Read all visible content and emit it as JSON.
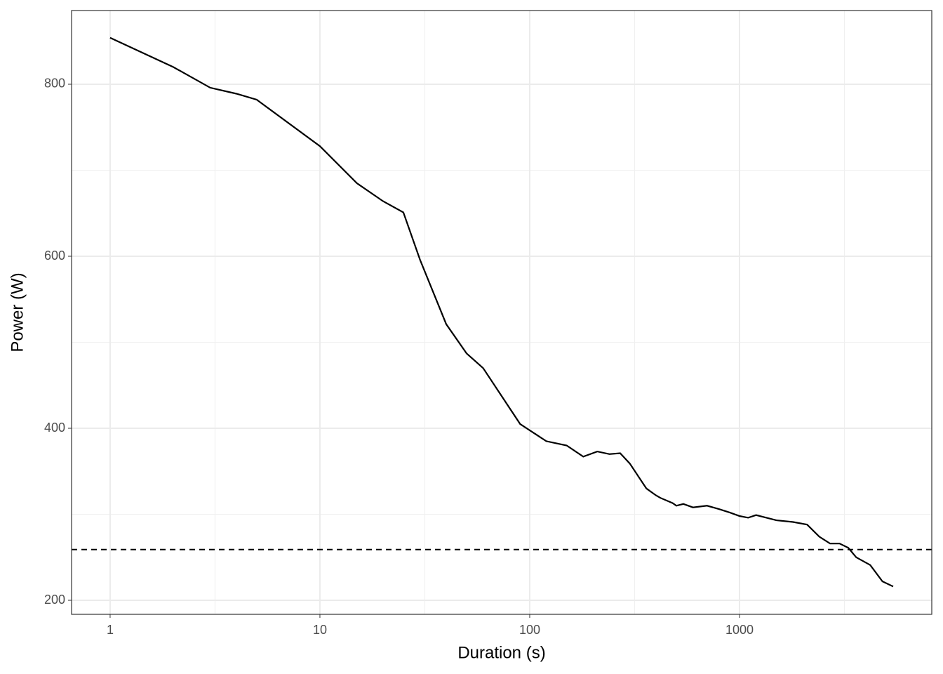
{
  "chart_data": {
    "type": "line",
    "x_label": "Duration (s)",
    "y_label": "Power (W)",
    "x_log": true,
    "grid": true,
    "minor_grid": true,
    "color": "#000000",
    "x": [
      1,
      2,
      3,
      4,
      5,
      10,
      15,
      20,
      25,
      30,
      40,
      50,
      60,
      90,
      120,
      150,
      180,
      210,
      240,
      270,
      300,
      360,
      400,
      420,
      480,
      500,
      540,
      600,
      700,
      800,
      900,
      1000,
      1100,
      1200,
      1500,
      1800,
      2100,
      2400,
      2700,
      3000,
      3300,
      3600,
      4200,
      4800,
      5400
    ],
    "series": [
      {
        "name": "Power",
        "color": "#000000",
        "values": [
          854,
          820,
          796,
          789,
          782,
          728,
          685,
          664,
          651,
          596,
          521,
          487,
          470,
          405,
          385,
          380,
          367,
          373,
          370,
          371,
          359,
          330,
          322,
          319,
          313,
          310,
          312,
          308,
          310,
          306,
          302,
          298,
          296,
          299,
          293,
          291,
          288,
          274,
          266,
          266,
          261,
          250,
          241,
          222,
          216
        ]
      }
    ],
    "hline": 259,
    "xlim": [
      0.655,
      8250
    ],
    "xticks": [
      1,
      10,
      100,
      1000
    ],
    "ylim": [
      183.7,
      885.7
    ],
    "yticks": [
      200,
      400,
      600,
      800
    ]
  }
}
